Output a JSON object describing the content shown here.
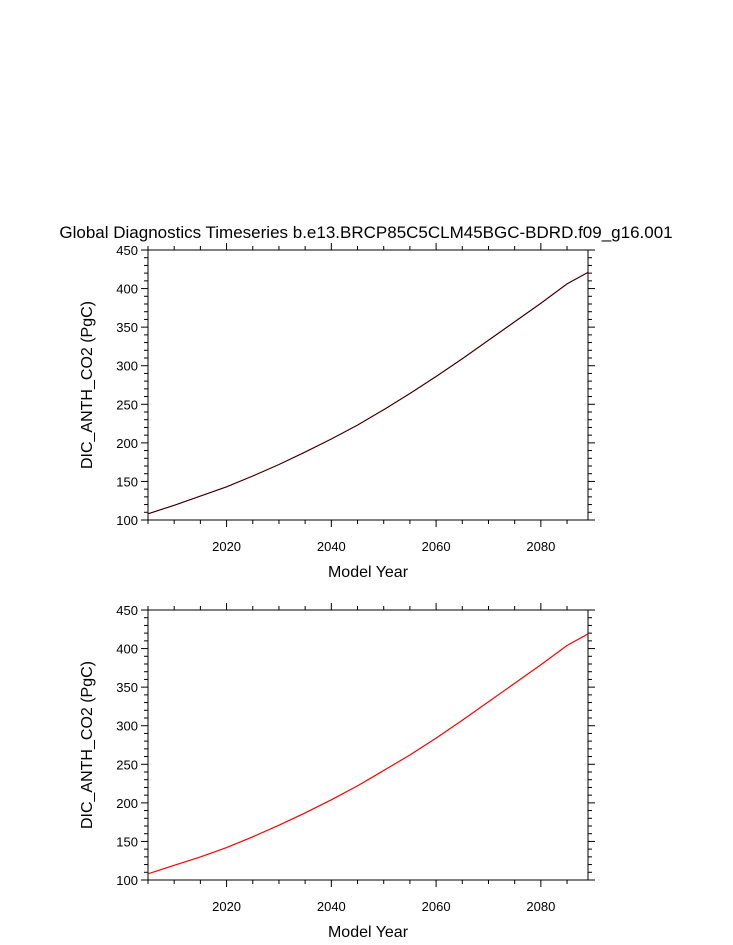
{
  "title": "Global Diagnostics Timeseries b.e13.BRCP85C5CLM45BGC-BDRD.f09_g16.001",
  "chart_data": [
    {
      "type": "line",
      "xlabel": "Model Year",
      "ylabel": "DIC_ANTH_CO2 (PgC)",
      "xlim": [
        2005,
        2089
      ],
      "ylim": [
        100,
        450
      ],
      "xticks": [
        2020,
        2040,
        2060,
        2080
      ],
      "yticks": [
        100,
        150,
        200,
        250,
        300,
        350,
        400,
        450
      ],
      "series": [
        {
          "color": "#8b0000",
          "x": [
            2005,
            2010,
            2015,
            2020,
            2025,
            2030,
            2035,
            2040,
            2045,
            2050,
            2055,
            2060,
            2065,
            2070,
            2075,
            2080,
            2085,
            2089
          ],
          "values": [
            108,
            119,
            131,
            143,
            157,
            172,
            188,
            205,
            223,
            243,
            264,
            286,
            309,
            333,
            357,
            381,
            406,
            421
          ]
        },
        {
          "color": "#000000",
          "x": [
            2005,
            2010,
            2015,
            2020,
            2025,
            2030,
            2035,
            2040,
            2045,
            2050,
            2055,
            2060,
            2065,
            2070,
            2075,
            2080,
            2085,
            2089
          ],
          "values": [
            108,
            119,
            131,
            143,
            157,
            172,
            188,
            205,
            223,
            243,
            264,
            286,
            309,
            333,
            357,
            381,
            406,
            421
          ]
        }
      ]
    },
    {
      "type": "line",
      "xlabel": "Model Year",
      "ylabel": "DIC_ANTH_CO2 (PgC)",
      "xlim": [
        2005,
        2089
      ],
      "ylim": [
        100,
        450
      ],
      "xticks": [
        2020,
        2040,
        2060,
        2080
      ],
      "yticks": [
        100,
        150,
        200,
        250,
        300,
        350,
        400,
        450
      ],
      "series": [
        {
          "color": "#ff0000",
          "x": [
            2005,
            2010,
            2015,
            2020,
            2025,
            2030,
            2035,
            2040,
            2045,
            2050,
            2055,
            2060,
            2065,
            2070,
            2075,
            2080,
            2085,
            2089
          ],
          "values": [
            108,
            119,
            130,
            142,
            156,
            171,
            187,
            204,
            222,
            242,
            262,
            284,
            307,
            331,
            355,
            379,
            404,
            419
          ]
        }
      ]
    }
  ]
}
